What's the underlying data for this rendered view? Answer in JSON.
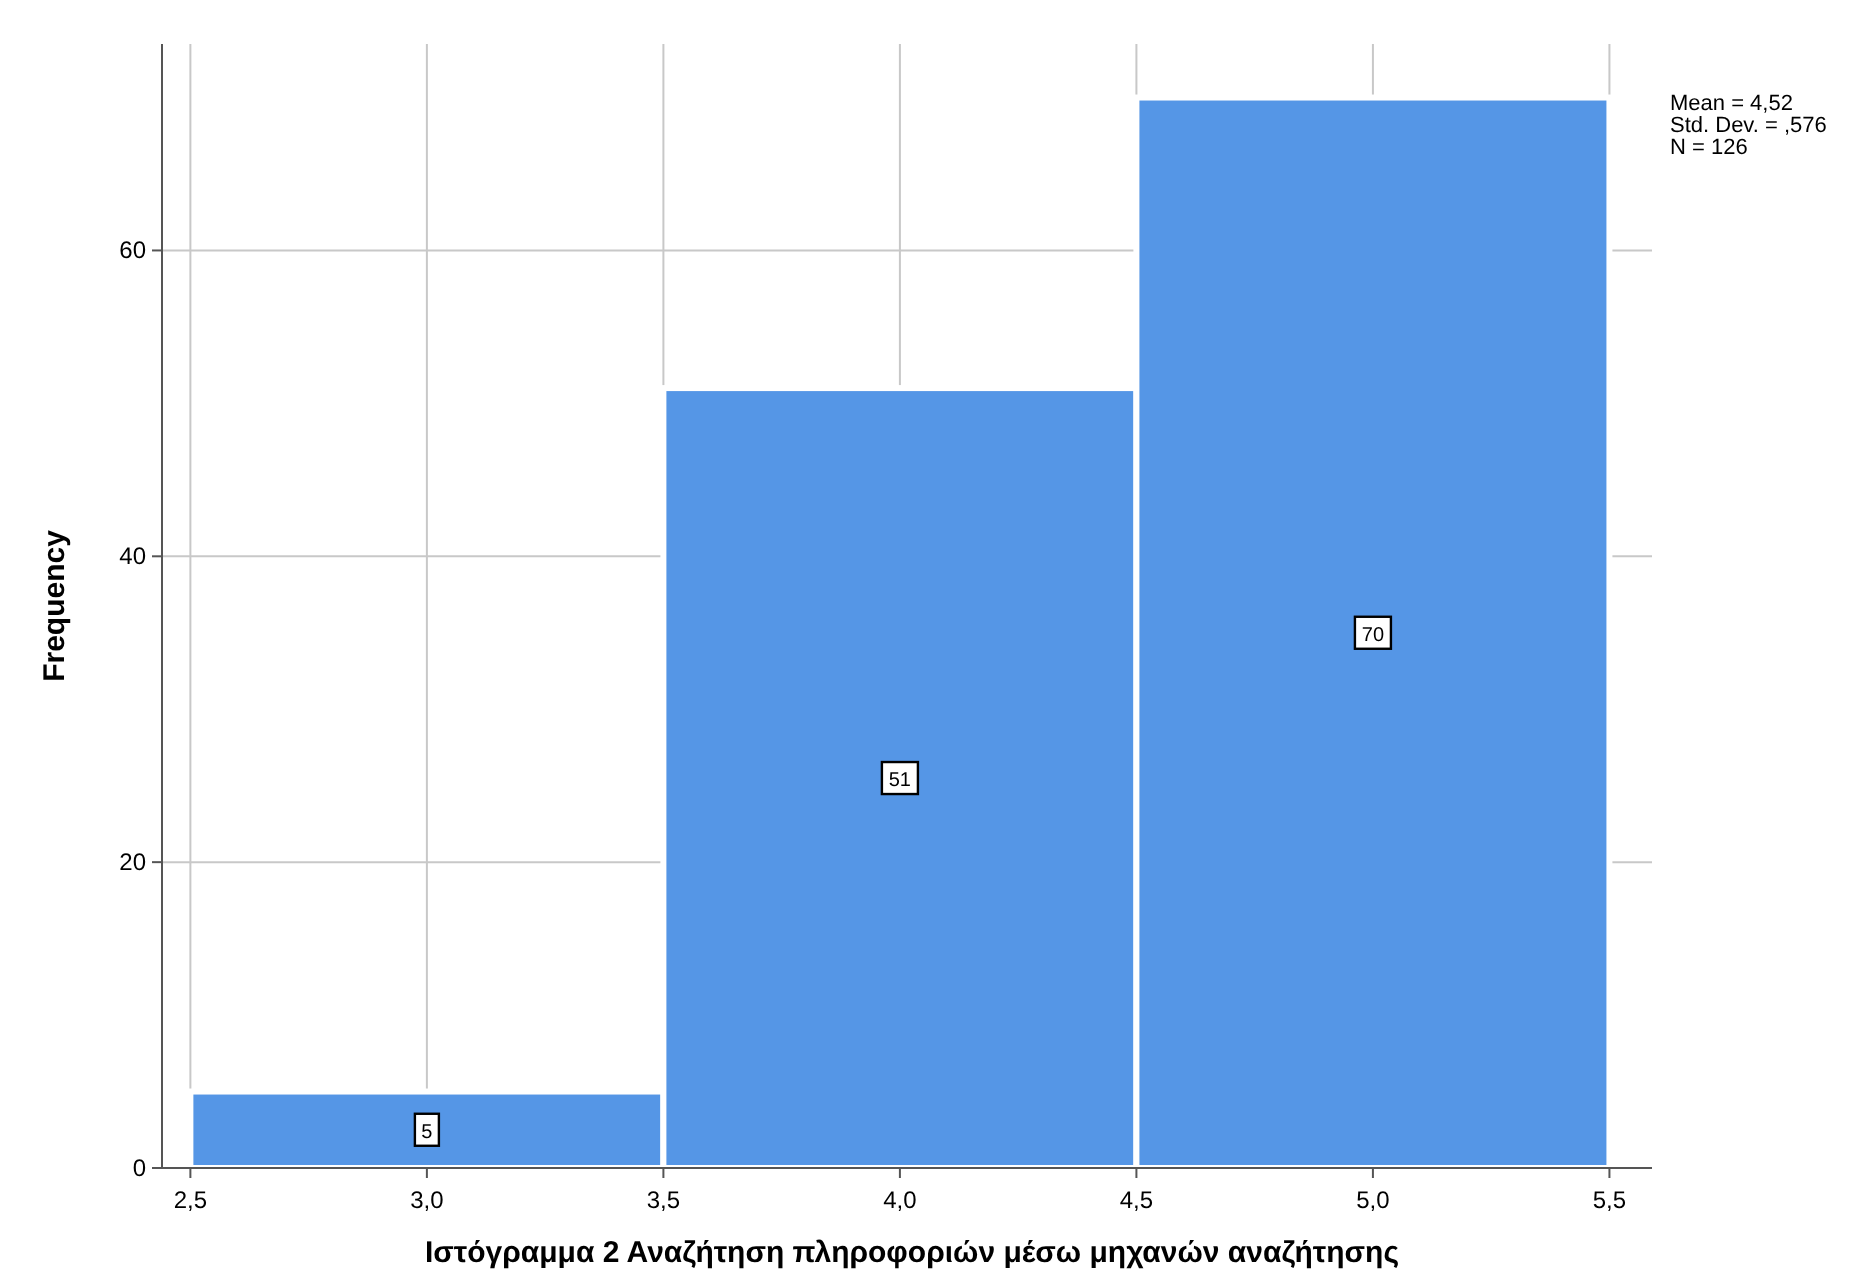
{
  "chart_data": {
    "type": "histogram",
    "xlabel": "Ιστόγραμμα 2 Αναζήτηση πληροφοριών μέσω μηχανών αναζήτησης",
    "ylabel": "Frequency",
    "bins": [
      2.5,
      3.5,
      4.5,
      5.5
    ],
    "values": [
      5,
      51,
      70
    ],
    "color": "#5596e6",
    "xlim": [
      2.44,
      5.59
    ],
    "xticks": [
      {
        "value": 2.5,
        "label": "2,5"
      },
      {
        "value": 3,
        "label": "3,0"
      },
      {
        "value": 3.5,
        "label": "3,5"
      },
      {
        "value": 4,
        "label": "4,0"
      },
      {
        "value": 4.5,
        "label": "4,5"
      },
      {
        "value": 5,
        "label": "5,0"
      },
      {
        "value": 5.5,
        "label": "5,5"
      }
    ],
    "ylim": [
      0,
      73.5
    ],
    "yticks": [
      0,
      20,
      40,
      60
    ],
    "grid": true,
    "data_labels": true,
    "annotations": [
      "Mean = 4,52",
      "Std. Dev. = ,576",
      "N = 126"
    ]
  }
}
